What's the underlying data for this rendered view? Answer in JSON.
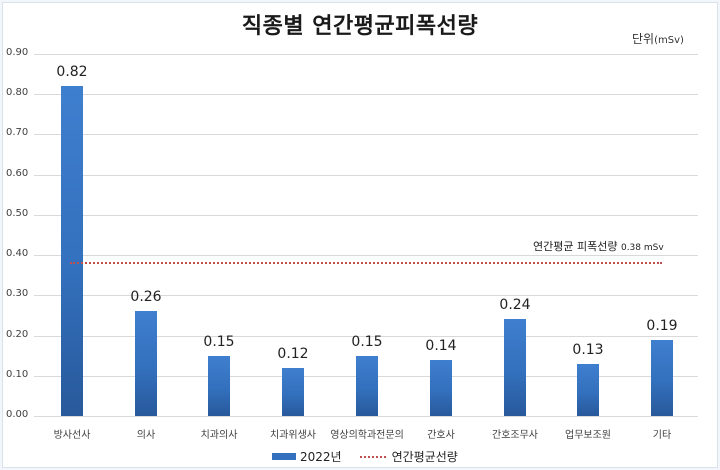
{
  "chart": {
    "title": "직종별 연간평균피폭선량",
    "unit_label": "단위",
    "unit_value": "(mSv)",
    "avg_label_text": "연간평균 피폭선량",
    "avg_label_value": "0.38 mSv",
    "legend": {
      "series_label": "2022년",
      "line_label": "연간평균선량"
    },
    "colors": {
      "bar": "#3370bd",
      "avg_line": "#c0504d",
      "grid": "#d9d9d9"
    }
  },
  "chart_data": {
    "type": "bar",
    "title": "직종별 연간평균피폭선량",
    "xlabel": "",
    "ylabel": "단위(mSv)",
    "ylim": [
      0,
      0.9
    ],
    "yticks": [
      "0.00",
      "0.10",
      "0.20",
      "0.30",
      "0.40",
      "0.50",
      "0.60",
      "0.70",
      "0.80",
      "0.90"
    ],
    "grid": true,
    "legend_position": "bottom",
    "categories": [
      "방사선사",
      "의사",
      "치과의사",
      "치과위생사",
      "영상의학과전문의",
      "간호사",
      "간호조무사",
      "업무보조원",
      "기타"
    ],
    "series": [
      {
        "name": "2022년",
        "values": [
          0.82,
          0.26,
          0.15,
          0.12,
          0.15,
          0.14,
          0.24,
          0.13,
          0.19
        ]
      }
    ],
    "value_labels": [
      "0.82",
      "0.26",
      "0.15",
      "0.12",
      "0.15",
      "0.14",
      "0.24",
      "0.13",
      "0.19"
    ],
    "reference_line": {
      "name": "연간평균선량",
      "value": 0.38,
      "annotation": "연간평균 피폭선량 0.38 mSv"
    }
  }
}
